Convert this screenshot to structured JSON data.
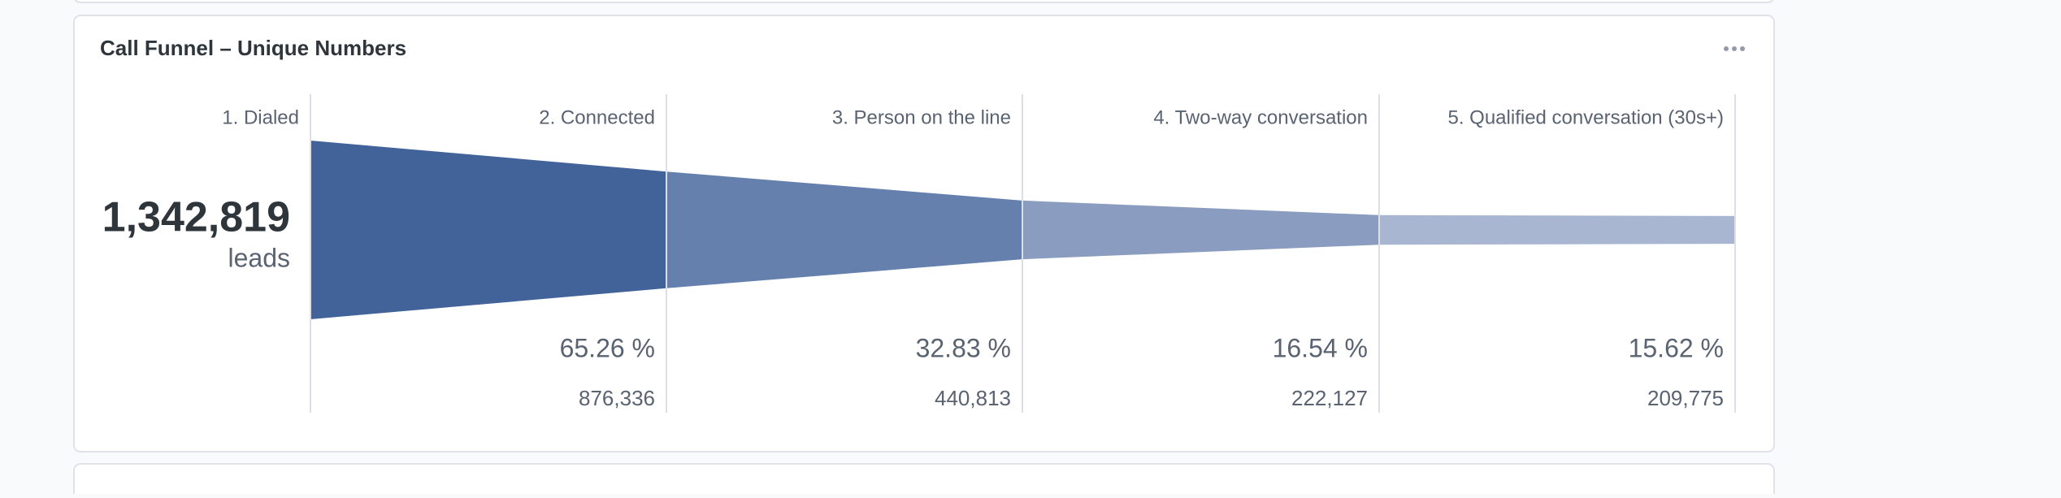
{
  "chart_data": {
    "type": "funnel",
    "title": "Call Funnel – Unique Numbers",
    "categories": [
      "1. Dialed",
      "2. Connected",
      "3. Person on the line",
      "4. Two-way conversation",
      "5. Qualified conversation (30s+)"
    ],
    "values": [
      1342819,
      876336,
      440813,
      222127,
      209775
    ],
    "value_labels": [
      "1,342,819",
      "876,336",
      "440,813",
      "222,127",
      "209,775"
    ],
    "unit": "leads",
    "percents": [
      null,
      65.26,
      32.83,
      16.54,
      15.62
    ],
    "percent_labels": [
      null,
      "65.26 %",
      "32.83 %",
      "16.54 %",
      "15.62 %"
    ],
    "colors": [
      null,
      "#41639a",
      "#6680ae",
      "#8a9cbf",
      "#a8b6d2"
    ]
  }
}
